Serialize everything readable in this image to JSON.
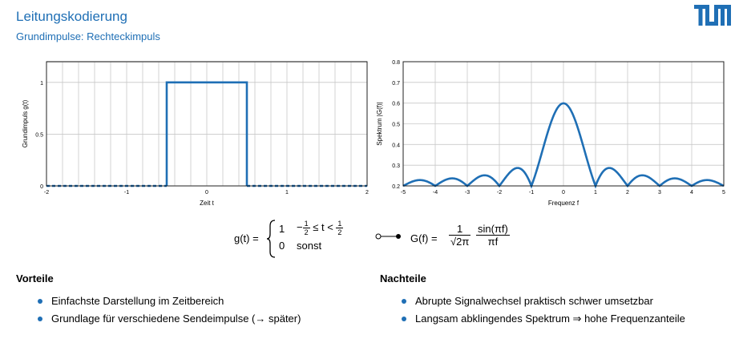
{
  "header": {
    "title": "Leitungskodierung",
    "subtitle": "Grundimpulse: Rechteckimpuls",
    "logo_text": "TUM",
    "accent_color": "#1f6fb5"
  },
  "chart_data": [
    {
      "type": "line",
      "name": "rect-pulse",
      "xlabel": "Zeit t",
      "ylabel": "Grundimpuls g(t)",
      "xlim": [
        -2,
        2
      ],
      "ylim": [
        0,
        1.2
      ],
      "x_ticks": [
        "-2",
        "-1",
        "0",
        "1",
        "2"
      ],
      "y_ticks": [
        "0",
        "0.5",
        "1"
      ],
      "grid": true,
      "series": [
        {
          "style": "solid",
          "x": [
            -0.5,
            -0.5,
            0.5,
            0.5
          ],
          "y": [
            0,
            1,
            1,
            0
          ]
        },
        {
          "style": "dashed",
          "x": [
            -2,
            -0.5
          ],
          "y": [
            0,
            0
          ]
        },
        {
          "style": "dashed",
          "x": [
            0.5,
            2
          ],
          "y": [
            0,
            0
          ]
        }
      ]
    },
    {
      "type": "line",
      "name": "spectrum",
      "xlabel": "Frequenz f",
      "ylabel": "Spektrum |G(f)|",
      "xlim": [
        -5,
        5
      ],
      "ylim": [
        0.2,
        0.8
      ],
      "x_ticks": [
        "-5",
        "-4",
        "-3",
        "-2",
        "-1",
        "0",
        "1",
        "2",
        "3",
        "4",
        "5"
      ],
      "y_ticks": [
        "0.2",
        "0.3",
        "0.4",
        "0.5",
        "0.6",
        "0.7",
        "0.8"
      ],
      "grid": true,
      "function": "0.2 + |sin(pi f)/(pi f)| / sqrt(2 pi)"
    }
  ],
  "formula": {
    "lhs": "g(t) =",
    "case1_value": "1",
    "case1_cond_mid": "≤ t <",
    "case1_half": "1",
    "case1_half_den": "2",
    "case2_value": "0",
    "case2_cond": "sonst",
    "rhs_lhs": "G(f) =",
    "rhs_num": "1",
    "rhs_den": "2π",
    "rhs_sinc_num": "sin(πf)",
    "rhs_sinc_den": "πf"
  },
  "vorteile": {
    "heading": "Vorteile",
    "items": [
      "Einfachste Darstellung im Zeitbereich",
      "Grundlage für verschiedene Sendeimpulse (→ später)"
    ]
  },
  "nachteile": {
    "heading": "Nachteile",
    "items": [
      "Abrupte Signalwechsel praktisch schwer umsetzbar",
      "Langsam abklingendes Spektrum ⇒ hohe Frequenzanteile"
    ]
  }
}
